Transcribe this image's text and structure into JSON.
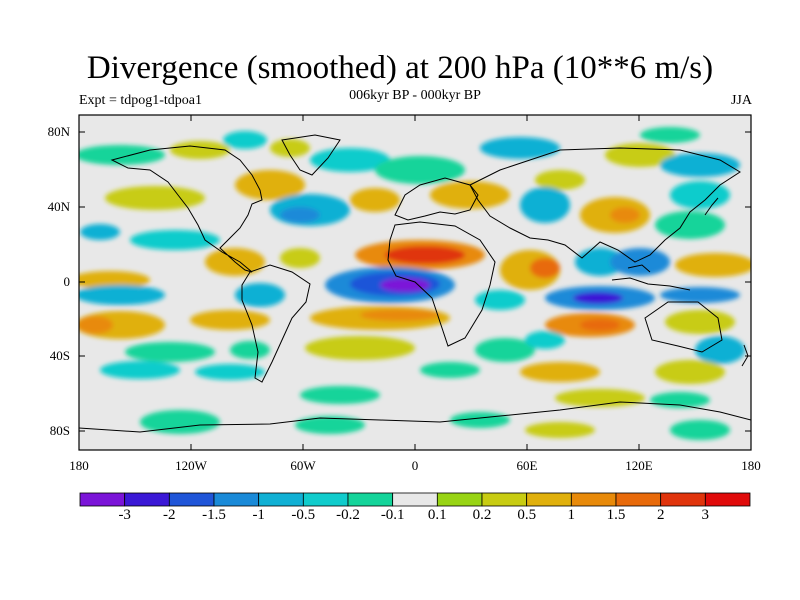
{
  "title": "Divergence (smoothed) at 200 hPa (10**6 m/s)",
  "experiment": "Expt = tdpog1-tdpoa1",
  "period": "006kyr BP - 000kyr BP",
  "season": "JJA",
  "lat_labels": [
    "80N",
    "40N",
    "0",
    "40S",
    "80S"
  ],
  "lon_labels": [
    "180",
    "120W",
    "60W",
    "0",
    "60E",
    "120E",
    "180"
  ],
  "colorbar": {
    "colors": [
      "#7b14d8",
      "#3b18d6",
      "#1f55d8",
      "#1a8ad8",
      "#10b0d4",
      "#10cccc",
      "#14d49a",
      "#e8e8e8",
      "#98d414",
      "#c8cc12",
      "#e0b00c",
      "#e88a0a",
      "#e86a0a",
      "#e0340c",
      "#e00a0a"
    ],
    "labels": [
      "-3",
      "-2",
      "-1.5",
      "-1",
      "-0.5",
      "-0.2",
      "-0.1",
      "0.1",
      "0.2",
      "0.5",
      "1",
      "1.5",
      "2",
      "3"
    ]
  }
}
